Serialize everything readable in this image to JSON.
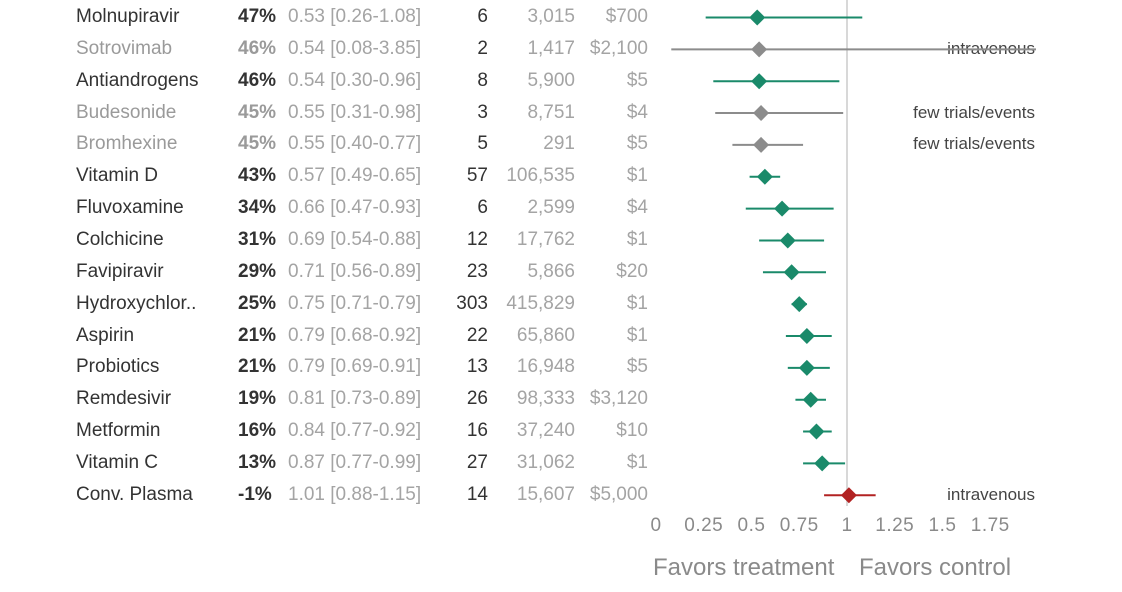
{
  "chart_data": {
    "type": "forest",
    "x_axis": {
      "range": [
        0,
        1.75
      ],
      "ticks": [
        "0",
        "0.25",
        "0.5",
        "0.75",
        "1",
        "1.25",
        "1.5",
        "1.75"
      ],
      "reference_line": 1
    },
    "favors": {
      "left": "Favors treatment",
      "right": "Favors control"
    },
    "colors": {
      "positive": "#1a8a6a",
      "muted": "#8c8c8c",
      "negative": "#b22222",
      "reference": "#cccccc"
    },
    "rows": [
      {
        "name": "Molnupiravir",
        "improvement": "47%",
        "ci_text": "0.53 [0.26-1.08]",
        "rr": 0.53,
        "lo": 0.26,
        "hi": 1.08,
        "trials": "6",
        "patients": "3,015",
        "cost": "$700",
        "note": "",
        "style": "positive"
      },
      {
        "name": "Sotrovimab",
        "improvement": "46%",
        "ci_text": "0.54 [0.08-3.85]",
        "rr": 0.54,
        "lo": 0.08,
        "hi": 3.85,
        "trials": "2",
        "patients": "1,417",
        "cost": "$2,100",
        "note": "intravenous",
        "style": "muted"
      },
      {
        "name": "Antiandrogens",
        "improvement": "46%",
        "ci_text": "0.54 [0.30-0.96]",
        "rr": 0.54,
        "lo": 0.3,
        "hi": 0.96,
        "trials": "8",
        "patients": "5,900",
        "cost": "$5",
        "note": "",
        "style": "positive"
      },
      {
        "name": "Budesonide",
        "improvement": "45%",
        "ci_text": "0.55 [0.31-0.98]",
        "rr": 0.55,
        "lo": 0.31,
        "hi": 0.98,
        "trials": "3",
        "patients": "8,751",
        "cost": "$4",
        "note": "few trials/events",
        "style": "muted"
      },
      {
        "name": "Bromhexine",
        "improvement": "45%",
        "ci_text": "0.55 [0.40-0.77]",
        "rr": 0.55,
        "lo": 0.4,
        "hi": 0.77,
        "trials": "5",
        "patients": "291",
        "cost": "$5",
        "note": "few trials/events",
        "style": "muted"
      },
      {
        "name": "Vitamin D",
        "improvement": "43%",
        "ci_text": "0.57 [0.49-0.65]",
        "rr": 0.57,
        "lo": 0.49,
        "hi": 0.65,
        "trials": "57",
        "patients": "106,535",
        "cost": "$1",
        "note": "",
        "style": "positive"
      },
      {
        "name": "Fluvoxamine",
        "improvement": "34%",
        "ci_text": "0.66 [0.47-0.93]",
        "rr": 0.66,
        "lo": 0.47,
        "hi": 0.93,
        "trials": "6",
        "patients": "2,599",
        "cost": "$4",
        "note": "",
        "style": "positive"
      },
      {
        "name": "Colchicine",
        "improvement": "31%",
        "ci_text": "0.69 [0.54-0.88]",
        "rr": 0.69,
        "lo": 0.54,
        "hi": 0.88,
        "trials": "12",
        "patients": "17,762",
        "cost": "$1",
        "note": "",
        "style": "positive"
      },
      {
        "name": "Favipiravir",
        "improvement": "29%",
        "ci_text": "0.71 [0.56-0.89]",
        "rr": 0.71,
        "lo": 0.56,
        "hi": 0.89,
        "trials": "23",
        "patients": "5,866",
        "cost": "$20",
        "note": "",
        "style": "positive"
      },
      {
        "name": "Hydroxychlor..",
        "improvement": "25%",
        "ci_text": "0.75 [0.71-0.79]",
        "rr": 0.75,
        "lo": 0.71,
        "hi": 0.79,
        "trials": "303",
        "patients": "415,829",
        "cost": "$1",
        "note": "",
        "style": "positive"
      },
      {
        "name": "Aspirin",
        "improvement": "21%",
        "ci_text": "0.79 [0.68-0.92]",
        "rr": 0.79,
        "lo": 0.68,
        "hi": 0.92,
        "trials": "22",
        "patients": "65,860",
        "cost": "$1",
        "note": "",
        "style": "positive"
      },
      {
        "name": "Probiotics",
        "improvement": "21%",
        "ci_text": "0.79 [0.69-0.91]",
        "rr": 0.79,
        "lo": 0.69,
        "hi": 0.91,
        "trials": "13",
        "patients": "16,948",
        "cost": "$5",
        "note": "",
        "style": "positive"
      },
      {
        "name": "Remdesivir",
        "improvement": "19%",
        "ci_text": "0.81 [0.73-0.89]",
        "rr": 0.81,
        "lo": 0.73,
        "hi": 0.89,
        "trials": "26",
        "patients": "98,333",
        "cost": "$3,120",
        "note": "",
        "style": "positive"
      },
      {
        "name": "Metformin",
        "improvement": "16%",
        "ci_text": "0.84 [0.77-0.92]",
        "rr": 0.84,
        "lo": 0.77,
        "hi": 0.92,
        "trials": "16",
        "patients": "37,240",
        "cost": "$10",
        "note": "",
        "style": "positive"
      },
      {
        "name": "Vitamin C",
        "improvement": "13%",
        "ci_text": "0.87 [0.77-0.99]",
        "rr": 0.87,
        "lo": 0.77,
        "hi": 0.99,
        "trials": "27",
        "patients": "31,062",
        "cost": "$1",
        "note": "",
        "style": "positive"
      },
      {
        "name": "Conv. Plasma",
        "improvement": "-1%",
        "ci_text": "1.01 [0.88-1.15]",
        "rr": 1.01,
        "lo": 0.88,
        "hi": 1.15,
        "trials": "14",
        "patients": "15,607",
        "cost": "$5,000",
        "note": "intravenous",
        "style": "negative"
      }
    ]
  }
}
